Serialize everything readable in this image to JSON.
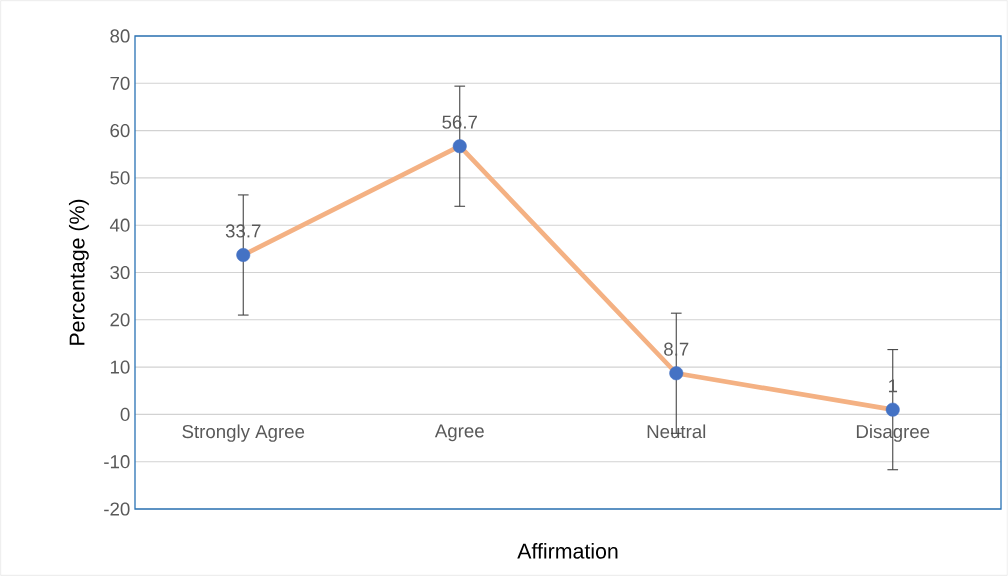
{
  "chart_data": {
    "type": "line",
    "xlabel": "Affirmation",
    "ylabel": "Percentage (%)",
    "categories": [
      "Strongly Agree",
      "Agree",
      "Neutral",
      "Disagree"
    ],
    "series": [
      {
        "color": "#f4b183",
        "colors": [
          "#4472c4",
          "#4472c4",
          "#4472c4",
          "#4472c4"
        ],
        "values": [
          33.7,
          56.7,
          8.7,
          1
        ],
        "errors": [
          12.7,
          12.7,
          12.7,
          12.7
        ]
      }
    ],
    "ylim": [
      -20,
      80
    ],
    "yticks": [
      -20,
      -10,
      0,
      10,
      20,
      30,
      40,
      50,
      60,
      70,
      80
    ],
    "grid": "y",
    "marker": "circle",
    "line_style": "solid",
    "data_labels": true
  }
}
